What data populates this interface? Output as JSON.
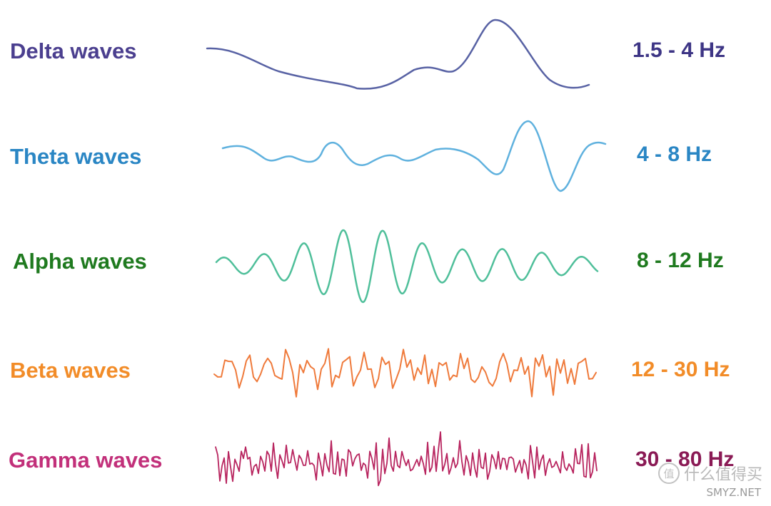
{
  "waves": [
    {
      "name": "Delta waves",
      "range": "1.5 - 4 Hz",
      "color": "#4b3f8f",
      "line": "#5862a4"
    },
    {
      "name": "Theta waves",
      "range": "4 - 8 Hz",
      "color": "#2a86c4",
      "line": "#5fb1de"
    },
    {
      "name": "Alpha waves",
      "range": "8 - 12 Hz",
      "color": "#1f7a1f",
      "line": "#4fbf9a"
    },
    {
      "name": "Beta waves",
      "range": "12 - 30 Hz",
      "color": "#f28c28",
      "line": "#ef7a3b"
    },
    {
      "name": "Gamma waves",
      "range": "30 - 80 Hz",
      "color": "#c2307a",
      "line": "#b8255f"
    }
  ],
  "freq_colors": [
    "#3d3585",
    "#2a86c4",
    "#1f7a1f",
    "#f28c28",
    "#8a1a55"
  ],
  "watermark": {
    "text": "什么值得买",
    "site": "SMYZ.NET",
    "icon": "smzdm-logo-icon"
  }
}
